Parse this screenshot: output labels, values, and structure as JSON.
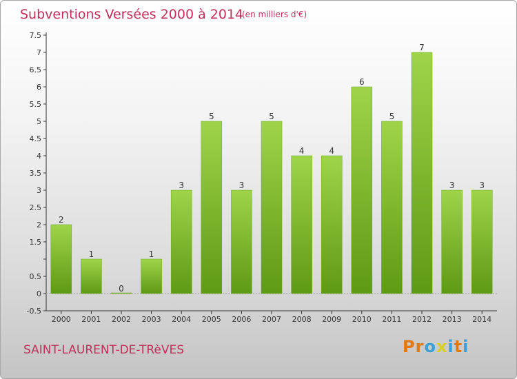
{
  "header": {
    "title": "Subventions Versées 2000 à 2014",
    "unit": "(en milliers d'€)"
  },
  "footer": {
    "commune": "SAINT-LAURENT-DE-TRèVES",
    "logo": "Proxiti"
  },
  "colors": {
    "accent": "#c0305a",
    "bar_top": "#9fd44a",
    "bar_bottom": "#5e9a12",
    "logo_letters": [
      "#e07a10",
      "#e07a10",
      "#3aa0d8",
      "#d8d020",
      "#3aa0d8",
      "#e07a10",
      "#3aa0d8"
    ]
  },
  "chart_data": {
    "type": "bar",
    "categories": [
      "2000",
      "2001",
      "2002",
      "2003",
      "2004",
      "2005",
      "2006",
      "2007",
      "2008",
      "2009",
      "2010",
      "2011",
      "2012",
      "2013",
      "2014"
    ],
    "values": [
      2,
      1,
      0,
      1,
      3,
      5,
      3,
      5,
      4,
      4,
      6,
      5,
      7,
      3,
      3
    ],
    "value_labels": [
      "2",
      "1",
      "0",
      "1",
      "3",
      "5",
      "3",
      "5",
      "4",
      "4",
      "6",
      "5",
      "7",
      "3",
      "3"
    ],
    "yticks": [
      -0.5,
      0,
      0.5,
      1,
      1.5,
      2,
      2.5,
      3,
      3.5,
      4,
      4.5,
      5,
      5.5,
      6,
      6.5,
      7,
      7.5
    ],
    "ytick_labels": [
      "-0.5",
      "0",
      "0.5",
      "",
      "1.5",
      "2",
      "2.5",
      "3",
      "3.5",
      "4",
      "4.5",
      "5",
      "5.5",
      "6",
      "6.5",
      "7",
      "7.5"
    ],
    "ylim": [
      -0.5,
      7.5
    ],
    "grid": false,
    "legend": "none"
  }
}
